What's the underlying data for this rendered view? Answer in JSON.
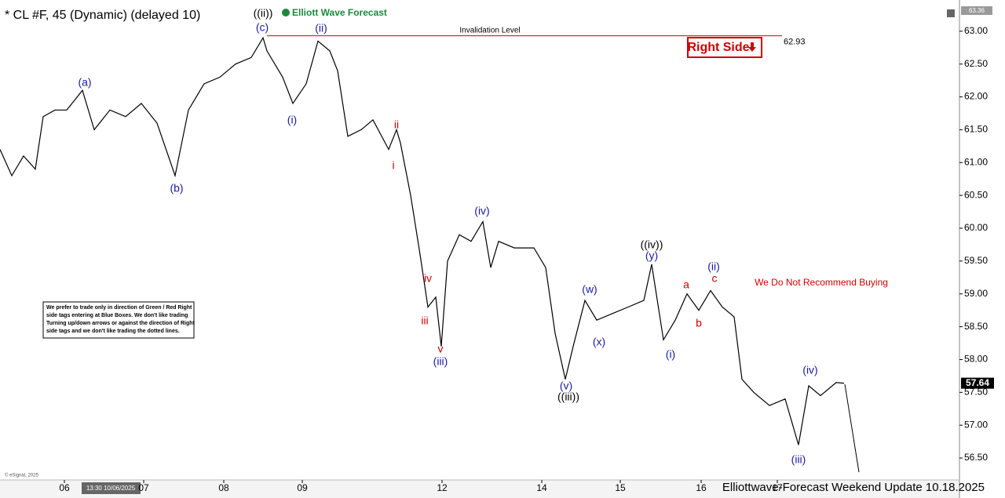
{
  "chart_data": {
    "type": "line",
    "title": "* CL #F, 45 (Dynamic) (delayed 10)",
    "brand": "Elliott Wave Forecast",
    "color": "#000000",
    "x": [
      0,
      1.5,
      3,
      4.5,
      5.5,
      7,
      8.5,
      10.5,
      12,
      14,
      16,
      18,
      20,
      22.3,
      24,
      26,
      28,
      30,
      32,
      33.5,
      34,
      36,
      37.3,
      39,
      40.5,
      42,
      43,
      44.3,
      46,
      47.5,
      49.5,
      50.5,
      51,
      52.3,
      53.5,
      54.5,
      55.5,
      56.2,
      57,
      58.5,
      60,
      61.5,
      62.5,
      63.5,
      65.5,
      68,
      69.5,
      70.7,
      72,
      73,
      74.5,
      76,
      78,
      80,
      82,
      83,
      84.5,
      86,
      87.5,
      89,
      90.5,
      92,
      93.5,
      94.5,
      96,
      98,
      100,
      101.7,
      103,
      104.5,
      106.5,
      107.5
    ],
    "values": [
      61.2,
      60.8,
      61.1,
      60.9,
      61.7,
      61.8,
      61.8,
      62.1,
      61.5,
      61.8,
      61.7,
      61.9,
      61.6,
      60.8,
      61.8,
      62.2,
      62.3,
      62.5,
      62.6,
      62.9,
      62.7,
      62.3,
      61.9,
      62.2,
      62.85,
      62.7,
      62.4,
      61.4,
      61.5,
      61.65,
      61.2,
      61.5,
      61.3,
      60.5,
      59.6,
      58.8,
      58.95,
      58.2,
      59.5,
      59.9,
      59.8,
      60.1,
      59.4,
      59.8,
      59.7,
      59.7,
      59.4,
      58.4,
      57.7,
      58.2,
      58.9,
      58.6,
      58.7,
      58.8,
      58.9,
      59.45,
      58.3,
      58.6,
      59.0,
      58.75,
      59.05,
      58.8,
      58.65,
      57.7,
      57.5,
      57.3,
      57.4,
      56.7,
      57.6,
      57.45,
      57.65,
      57.64
    ],
    "xlim": [
      0,
      122.2
    ],
    "ylim": [
      56.19,
      63.38
    ],
    "yticks": [
      {
        "value": 56.5,
        "label": "56.50"
      },
      {
        "value": 57,
        "label": "57.00"
      },
      {
        "value": 57.5,
        "label": "57.50"
      },
      {
        "value": 58,
        "label": "58.00"
      },
      {
        "value": 58.5,
        "label": "58.50"
      },
      {
        "value": 59,
        "label": "59.00"
      },
      {
        "value": 59.5,
        "label": "59.50"
      },
      {
        "value": 60,
        "label": "60.00"
      },
      {
        "value": 60.5,
        "label": "60.50"
      },
      {
        "value": 61,
        "label": "61.00"
      },
      {
        "value": 61.5,
        "label": "61.50"
      },
      {
        "value": 62,
        "label": "62.00"
      },
      {
        "value": 62.5,
        "label": "62.50"
      },
      {
        "value": 63,
        "label": "63.00"
      }
    ],
    "xticks": [
      {
        "value": 8.2,
        "label": "06"
      },
      {
        "value": 18.3,
        "label": "07"
      },
      {
        "value": 28.5,
        "label": "08"
      },
      {
        "value": 38.5,
        "label": "09"
      },
      {
        "value": 56.3,
        "label": "12"
      },
      {
        "value": 69,
        "label": "14"
      },
      {
        "value": 79,
        "label": "15"
      },
      {
        "value": 89.3,
        "label": "16"
      },
      {
        "value": 99,
        "label": "17"
      }
    ],
    "last_price": 57.64,
    "top_price": 63.36,
    "invalidation": {
      "label": "Invalidation Level",
      "value": 62.93,
      "color": "#d00000"
    },
    "right_side": "Right Side",
    "note": "We Do Not Recommend Buying",
    "disclaimer": [
      "We prefer to trade only in direction of Green / Red Right",
      "side tags entering at Blue Boxes. We don't like trading",
      "Turning up/down arrows or against the direction of Right",
      "side tags and we don't like trading the dotted lines."
    ],
    "copyright": "© eSignal, 2025",
    "cursor_time": "13:30 10/06/2025",
    "footer": "Elliottwave-Forecast Weekend  Update 10.18.2025",
    "annotations": [
      {
        "text": "((ii))",
        "color": "#000000"
      },
      {
        "text": "(c)",
        "color": "#1a1aa6"
      },
      {
        "text": "(ii)",
        "color": "#1a1aa6"
      },
      {
        "text": "(a)",
        "color": "#1a1aa6"
      },
      {
        "text": "(b)",
        "color": "#1a1aa6"
      },
      {
        "text": "(i)",
        "color": "#1a1aa6"
      },
      {
        "text": "ii",
        "color": "#d00000"
      },
      {
        "text": "i",
        "color": "#d00000"
      },
      {
        "text": "iv",
        "color": "#d00000"
      },
      {
        "text": "iii",
        "color": "#d00000"
      },
      {
        "text": "v",
        "color": "#d00000"
      },
      {
        "text": "(iii)",
        "color": "#1a1aa6"
      },
      {
        "text": "(iv)",
        "color": "#1a1aa6"
      },
      {
        "text": "(v)",
        "color": "#1a1aa6"
      },
      {
        "text": "((iii))",
        "color": "#000000"
      },
      {
        "text": "(w)",
        "color": "#1a1aa6"
      },
      {
        "text": "(x)",
        "color": "#1a1aa6"
      },
      {
        "text": "((iv))",
        "color": "#000000"
      },
      {
        "text": "(y)",
        "color": "#1a1aa6"
      },
      {
        "text": "a",
        "color": "#d00000"
      },
      {
        "text": "b",
        "color": "#d00000"
      },
      {
        "text": "c",
        "color": "#d00000"
      },
      {
        "text": "(ii)",
        "color": "#1a1aa6"
      },
      {
        "text": "(i)",
        "color": "#1a1aa6"
      },
      {
        "text": "(iv)",
        "color": "#1a1aa6"
      },
      {
        "text": "(iii)",
        "color": "#1a1aa6"
      }
    ]
  }
}
